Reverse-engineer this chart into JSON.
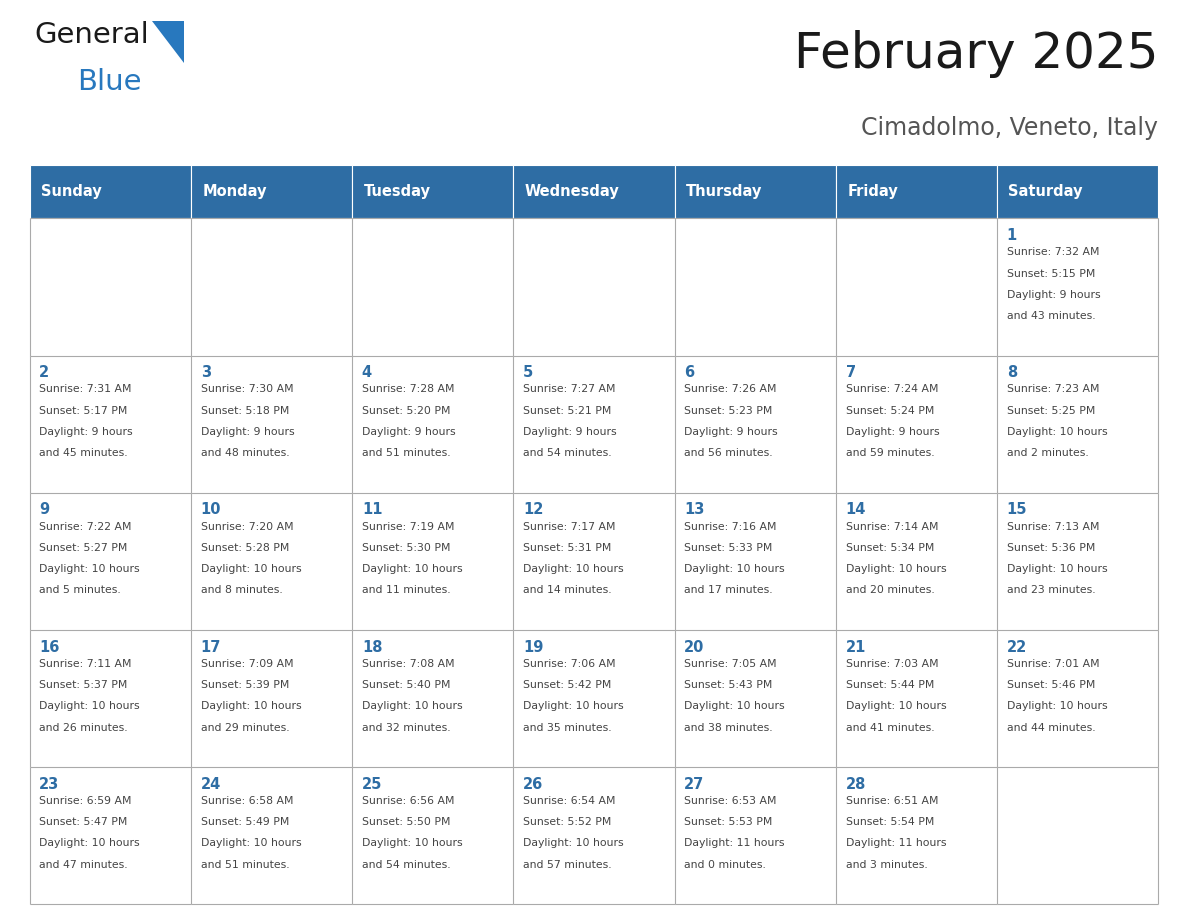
{
  "title": "February 2025",
  "subtitle": "Cimadolmo, Veneto, Italy",
  "header_bg_color": "#2E6DA4",
  "header_text_color": "#FFFFFF",
  "cell_bg_color": "#FFFFFF",
  "day_number_color": "#2E6DA4",
  "text_color": "#444444",
  "border_color": "#AAAAAA",
  "days_of_week": [
    "Sunday",
    "Monday",
    "Tuesday",
    "Wednesday",
    "Thursday",
    "Friday",
    "Saturday"
  ],
  "logo_general_color": "#1A1A1A",
  "logo_blue_color": "#2878BE",
  "calendar_data": [
    [
      null,
      null,
      null,
      null,
      null,
      null,
      1
    ],
    [
      2,
      3,
      4,
      5,
      6,
      7,
      8
    ],
    [
      9,
      10,
      11,
      12,
      13,
      14,
      15
    ],
    [
      16,
      17,
      18,
      19,
      20,
      21,
      22
    ],
    [
      23,
      24,
      25,
      26,
      27,
      28,
      null
    ]
  ],
  "sun_data": {
    "1": {
      "sunrise": "7:32 AM",
      "sunset": "5:15 PM",
      "daylight": "9 hours and 43 minutes."
    },
    "2": {
      "sunrise": "7:31 AM",
      "sunset": "5:17 PM",
      "daylight": "9 hours and 45 minutes."
    },
    "3": {
      "sunrise": "7:30 AM",
      "sunset": "5:18 PM",
      "daylight": "9 hours and 48 minutes."
    },
    "4": {
      "sunrise": "7:28 AM",
      "sunset": "5:20 PM",
      "daylight": "9 hours and 51 minutes."
    },
    "5": {
      "sunrise": "7:27 AM",
      "sunset": "5:21 PM",
      "daylight": "9 hours and 54 minutes."
    },
    "6": {
      "sunrise": "7:26 AM",
      "sunset": "5:23 PM",
      "daylight": "9 hours and 56 minutes."
    },
    "7": {
      "sunrise": "7:24 AM",
      "sunset": "5:24 PM",
      "daylight": "9 hours and 59 minutes."
    },
    "8": {
      "sunrise": "7:23 AM",
      "sunset": "5:25 PM",
      "daylight": "10 hours and 2 minutes."
    },
    "9": {
      "sunrise": "7:22 AM",
      "sunset": "5:27 PM",
      "daylight": "10 hours and 5 minutes."
    },
    "10": {
      "sunrise": "7:20 AM",
      "sunset": "5:28 PM",
      "daylight": "10 hours and 8 minutes."
    },
    "11": {
      "sunrise": "7:19 AM",
      "sunset": "5:30 PM",
      "daylight": "10 hours and 11 minutes."
    },
    "12": {
      "sunrise": "7:17 AM",
      "sunset": "5:31 PM",
      "daylight": "10 hours and 14 minutes."
    },
    "13": {
      "sunrise": "7:16 AM",
      "sunset": "5:33 PM",
      "daylight": "10 hours and 17 minutes."
    },
    "14": {
      "sunrise": "7:14 AM",
      "sunset": "5:34 PM",
      "daylight": "10 hours and 20 minutes."
    },
    "15": {
      "sunrise": "7:13 AM",
      "sunset": "5:36 PM",
      "daylight": "10 hours and 23 minutes."
    },
    "16": {
      "sunrise": "7:11 AM",
      "sunset": "5:37 PM",
      "daylight": "10 hours and 26 minutes."
    },
    "17": {
      "sunrise": "7:09 AM",
      "sunset": "5:39 PM",
      "daylight": "10 hours and 29 minutes."
    },
    "18": {
      "sunrise": "7:08 AM",
      "sunset": "5:40 PM",
      "daylight": "10 hours and 32 minutes."
    },
    "19": {
      "sunrise": "7:06 AM",
      "sunset": "5:42 PM",
      "daylight": "10 hours and 35 minutes."
    },
    "20": {
      "sunrise": "7:05 AM",
      "sunset": "5:43 PM",
      "daylight": "10 hours and 38 minutes."
    },
    "21": {
      "sunrise": "7:03 AM",
      "sunset": "5:44 PM",
      "daylight": "10 hours and 41 minutes."
    },
    "22": {
      "sunrise": "7:01 AM",
      "sunset": "5:46 PM",
      "daylight": "10 hours and 44 minutes."
    },
    "23": {
      "sunrise": "6:59 AM",
      "sunset": "5:47 PM",
      "daylight": "10 hours and 47 minutes."
    },
    "24": {
      "sunrise": "6:58 AM",
      "sunset": "5:49 PM",
      "daylight": "10 hours and 51 minutes."
    },
    "25": {
      "sunrise": "6:56 AM",
      "sunset": "5:50 PM",
      "daylight": "10 hours and 54 minutes."
    },
    "26": {
      "sunrise": "6:54 AM",
      "sunset": "5:52 PM",
      "daylight": "10 hours and 57 minutes."
    },
    "27": {
      "sunrise": "6:53 AM",
      "sunset": "5:53 PM",
      "daylight": "11 hours and 0 minutes."
    },
    "28": {
      "sunrise": "6:51 AM",
      "sunset": "5:54 PM",
      "daylight": "11 hours and 3 minutes."
    }
  }
}
